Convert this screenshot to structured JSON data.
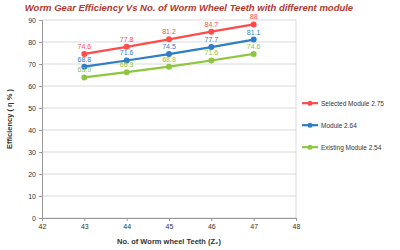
{
  "chart_data": {
    "type": "line",
    "title": "Worm Gear Efficiency Vs No. of Worm Wheel Teeth with different module",
    "x_label": "No. of Worm wheel Teeth (Z₂)",
    "y_label": "Efficiency ( η % )",
    "x": [
      43,
      44,
      45,
      46,
      47
    ],
    "series": [
      {
        "name": "Selected Module 2.75",
        "color": "#ff4b4b",
        "values": [
          74.6,
          77.8,
          81.2,
          84.7,
          88
        ]
      },
      {
        "name": "Module 2.64",
        "color": "#2e7dc6",
        "values": [
          68.8,
          71.6,
          74.5,
          77.7,
          81.1
        ]
      },
      {
        "name": "Existing Module 2.54",
        "color": "#8dc63f",
        "values": [
          63.9,
          66.3,
          68.8,
          71.6,
          74.6
        ]
      }
    ],
    "xlim": [
      42,
      48
    ],
    "xticks": [
      42,
      43,
      44,
      45,
      46,
      47,
      48
    ],
    "ylim": [
      0,
      90
    ],
    "yticks": [
      0,
      10,
      20,
      30,
      40,
      50,
      60,
      70,
      80,
      90
    ],
    "grid": true,
    "legend": "right",
    "data_labels": true,
    "marker": "circle",
    "line_style": "solid"
  }
}
